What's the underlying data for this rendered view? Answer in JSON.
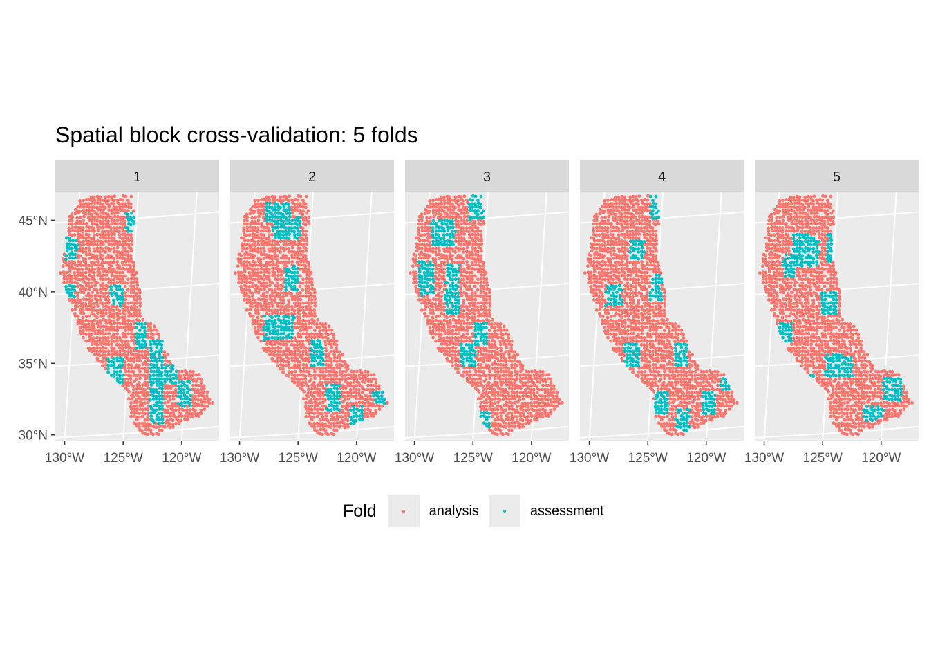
{
  "chart_data": {
    "type": "scatter",
    "title": "Spatial block cross-validation: 5 folds",
    "panels": [
      "1",
      "2",
      "3",
      "4",
      "5"
    ],
    "x_ticks": [
      "130°W",
      "125°W",
      "120°W"
    ],
    "x_tick_values": [
      -130,
      -125,
      -120
    ],
    "y_ticks": [
      "45°N",
      "40°N",
      "35°N",
      "30°N"
    ],
    "y_tick_values": [
      45,
      40,
      35,
      30
    ],
    "xlim": [
      -130.8,
      -116.8
    ],
    "ylim": [
      29.6,
      47.0
    ],
    "grid": true,
    "legend": {
      "title": "Fold",
      "position": "bottom",
      "entries": [
        "analysis",
        "assessment"
      ]
    },
    "series": [
      {
        "name": "analysis",
        "color": "#F8766D"
      },
      {
        "name": "assessment",
        "color": "#00BFC4"
      }
    ],
    "assessment_blocks_approx": {
      "1": [
        [
          -124.8,
          44.0,
          -123.8,
          45.5
        ],
        [
          -130.0,
          42.1,
          -128.9,
          43.9
        ],
        [
          -130.3,
          39.5,
          -129.1,
          40.6
        ],
        [
          -126.1,
          39.0,
          -125.0,
          40.5
        ],
        [
          -124.0,
          36.0,
          -123.0,
          37.9
        ],
        [
          -122.8,
          30.8,
          -121.6,
          36.6
        ],
        [
          -121.6,
          33.5,
          -120.4,
          34.9
        ],
        [
          -120.3,
          32.0,
          -119.2,
          33.8
        ],
        [
          -126.3,
          33.5,
          -125.0,
          35.4
        ]
      ],
      "2": [
        [
          -127.8,
          44.8,
          -125.6,
          46.2
        ],
        [
          -127.2,
          43.6,
          -124.8,
          45.2
        ],
        [
          -126.1,
          40.0,
          -124.9,
          41.8
        ],
        [
          -127.9,
          36.6,
          -125.3,
          38.3
        ],
        [
          -124.0,
          34.8,
          -122.8,
          36.6
        ],
        [
          -122.6,
          31.7,
          -121.4,
          33.5
        ],
        [
          -120.6,
          30.6,
          -119.4,
          32.0
        ],
        [
          -118.6,
          32.1,
          -117.6,
          33.1
        ]
      ],
      "3": [
        [
          -128.6,
          43.1,
          -126.5,
          45.0
        ],
        [
          -129.6,
          39.7,
          -128.3,
          42.1
        ],
        [
          -127.4,
          38.4,
          -126.1,
          41.9
        ],
        [
          -125.4,
          45.0,
          -124.0,
          46.9
        ],
        [
          -124.9,
          36.3,
          -123.7,
          37.9
        ],
        [
          -126.0,
          34.8,
          -124.8,
          36.4
        ],
        [
          -126.4,
          31.2,
          -125.0,
          33.0
        ],
        [
          -124.6,
          30.4,
          -123.4,
          31.6
        ]
      ],
      "4": [
        [
          -124.8,
          45.0,
          -123.8,
          46.9
        ],
        [
          -126.6,
          42.1,
          -125.3,
          43.6
        ],
        [
          -124.8,
          39.3,
          -123.8,
          41.3
        ],
        [
          -128.6,
          39.0,
          -127.2,
          40.6
        ],
        [
          -127.0,
          34.8,
          -125.6,
          36.4
        ],
        [
          -122.8,
          34.8,
          -121.6,
          36.4
        ],
        [
          -124.4,
          31.4,
          -123.2,
          33.0
        ],
        [
          -122.6,
          30.2,
          -121.4,
          31.8
        ],
        [
          -120.4,
          31.4,
          -119.2,
          33.0
        ],
        [
          -118.8,
          33.0,
          -117.8,
          34.0
        ]
      ],
      "5": [
        [
          -127.6,
          41.8,
          -125.3,
          44.0
        ],
        [
          -124.6,
          42.1,
          -123.6,
          44.0
        ],
        [
          -128.4,
          41.0,
          -127.2,
          42.6
        ],
        [
          -125.2,
          38.3,
          -123.8,
          40.0
        ],
        [
          -128.8,
          36.4,
          -127.6,
          37.9
        ],
        [
          -124.8,
          34.0,
          -122.4,
          35.6
        ],
        [
          -126.9,
          33.0,
          -125.8,
          34.2
        ],
        [
          -119.8,
          32.4,
          -118.2,
          34.0
        ],
        [
          -121.6,
          31.0,
          -119.8,
          32.0
        ]
      ]
    }
  }
}
